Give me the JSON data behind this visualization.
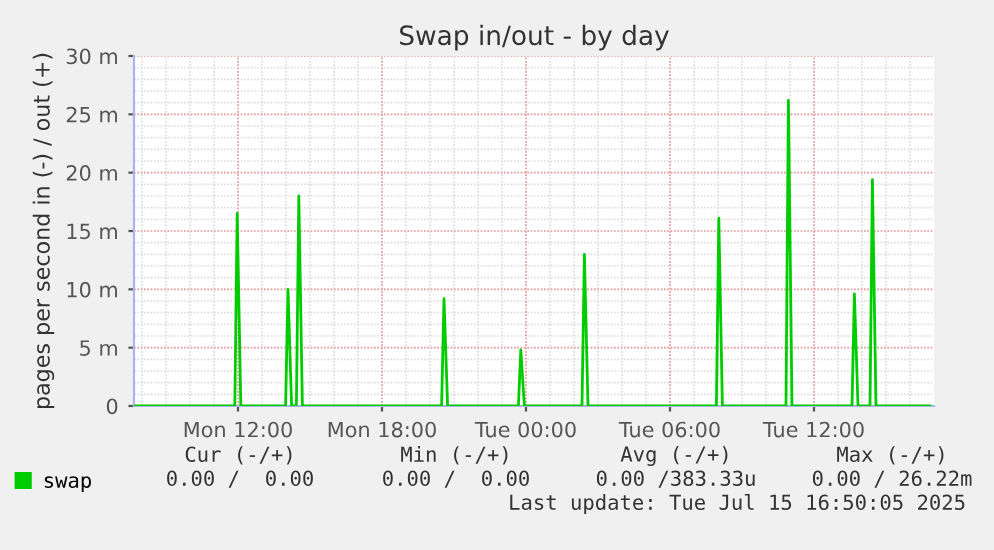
{
  "chart_data": {
    "type": "line",
    "title": "Swap in/out - by day",
    "ylabel": "pages per second in (-) / out (+)",
    "series": [
      {
        "name": "swap",
        "color": "#00cc00",
        "x": [
          "2025-07-14T07:42",
          "2025-07-14T11:52",
          "2025-07-14T11:58",
          "2025-07-14T12:07",
          "2025-07-14T13:59",
          "2025-07-14T14:05",
          "2025-07-14T14:14",
          "2025-07-14T14:26",
          "2025-07-14T14:32",
          "2025-07-14T14:41",
          "2025-07-14T20:29",
          "2025-07-14T20:35",
          "2025-07-14T20:44",
          "2025-07-14T23:41",
          "2025-07-14T23:47",
          "2025-07-14T23:56",
          "2025-07-15T02:20",
          "2025-07-15T02:26",
          "2025-07-15T02:35",
          "2025-07-15T07:56",
          "2025-07-15T08:02",
          "2025-07-15T08:11",
          "2025-07-15T10:50",
          "2025-07-15T10:56",
          "2025-07-15T11:05",
          "2025-07-15T13:35",
          "2025-07-15T13:41",
          "2025-07-15T13:50",
          "2025-07-15T14:20",
          "2025-07-15T14:26",
          "2025-07-15T14:35",
          "2025-07-15T16:50"
        ],
        "values": [
          0,
          0,
          16.5,
          0,
          0,
          10,
          0,
          0,
          18,
          0,
          0,
          9.2,
          0,
          0,
          4.8,
          0,
          0,
          13,
          0,
          0,
          16.1,
          0,
          0,
          26.2,
          0,
          0,
          9.6,
          0,
          0,
          19.4,
          0,
          0
        ]
      }
    ],
    "xlim": [
      "2025-07-14T07:40",
      "2025-07-15T17:00"
    ],
    "xticks": [
      {
        "value": "2025-07-14T12:00",
        "label": "Mon 12:00"
      },
      {
        "value": "2025-07-14T18:00",
        "label": "Mon 18:00"
      },
      {
        "value": "2025-07-15T00:00",
        "label": "Tue 00:00"
      },
      {
        "value": "2025-07-15T06:00",
        "label": "Tue 06:00"
      },
      {
        "value": "2025-07-15T12:00",
        "label": "Tue 12:00"
      }
    ],
    "ylim": [
      0,
      30
    ],
    "yticks": [
      0,
      {
        "value": 5,
        "label": "5 m"
      },
      {
        "value": 10,
        "label": "10 m"
      },
      {
        "value": 15,
        "label": "15 m"
      },
      {
        "value": 20,
        "label": "20 m"
      },
      {
        "value": 25,
        "label": "25 m"
      },
      {
        "value": 30,
        "label": "30 m"
      }
    ],
    "grid": true,
    "legend": "bottom",
    "marker": "none",
    "line_style": "solid",
    "annotations": [
      "Cur (-/+)",
      "Min (-/+)",
      "Avg (-/+)",
      "Max (-/+)",
      "0.00 /  0.00",
      "0.00 /  0.00",
      "0.00 /383.33u",
      "0.00 / 26.22m",
      "Last update: Tue Jul 15 16:50:05 2025"
    ]
  }
}
